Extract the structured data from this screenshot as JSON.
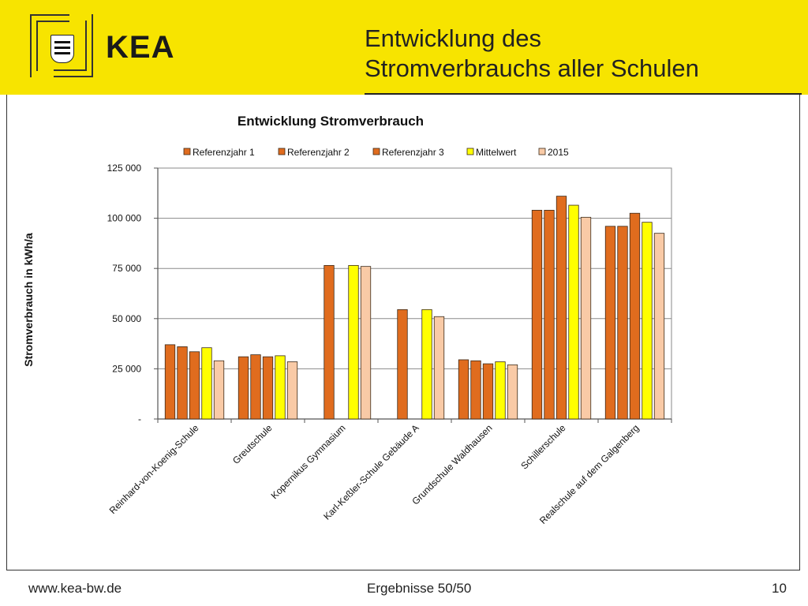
{
  "header": {
    "logo_text": "KEA",
    "title_line1": "Entwicklung des",
    "title_line2": "Stromverbrauchs aller Schulen"
  },
  "footer": {
    "url": "www.kea-bw.de",
    "center": "Ergebnisse 50/50",
    "page": "10"
  },
  "colors": {
    "header_bg": "#f7e400",
    "ref1": "#e06c1e",
    "ref2": "#e06c1e",
    "ref3": "#e06c1e",
    "mittelwert": "#ffff00",
    "y2015": "#f9caa6"
  },
  "chart_data": {
    "type": "bar",
    "title": "Entwicklung Stromverbrauch",
    "xlabel": "",
    "ylabel": "Stromverbrauch in kWh/a",
    "ylim": [
      0,
      125000
    ],
    "yticks": [
      0,
      25000,
      50000,
      75000,
      100000,
      125000
    ],
    "ytick_labels": [
      "-",
      "25 000",
      "50 000",
      "75 000",
      "100 000",
      "125 000"
    ],
    "grid": true,
    "legend_position": "top",
    "categories": [
      "Reinhard-von-Koenig-Schule",
      "Greutschule",
      "Kopernikus Gymnasium",
      "Karl-Keßler-Schule Gebäude A",
      "Grundschule Waldhausen",
      "Schillerschule",
      "Realschule auf dem Galgenberg"
    ],
    "series": [
      {
        "name": "Referenzjahr 1",
        "color": "#e06c1e",
        "values": [
          37000,
          31000,
          null,
          null,
          29500,
          104000,
          96000
        ]
      },
      {
        "name": "Referenzjahr 2",
        "color": "#e06c1e",
        "values": [
          36000,
          32000,
          76500,
          54500,
          29000,
          104000,
          96000
        ]
      },
      {
        "name": "Referenzjahr 3",
        "color": "#e06c1e",
        "values": [
          33500,
          31000,
          null,
          null,
          27500,
          111000,
          102500
        ]
      },
      {
        "name": "Mittelwert",
        "color": "#ffff00",
        "values": [
          35500,
          31500,
          76500,
          54500,
          28500,
          106500,
          98000
        ]
      },
      {
        "name": "2015",
        "color": "#f9caa6",
        "values": [
          29000,
          28500,
          76000,
          51000,
          27000,
          100500,
          92500
        ]
      }
    ]
  }
}
